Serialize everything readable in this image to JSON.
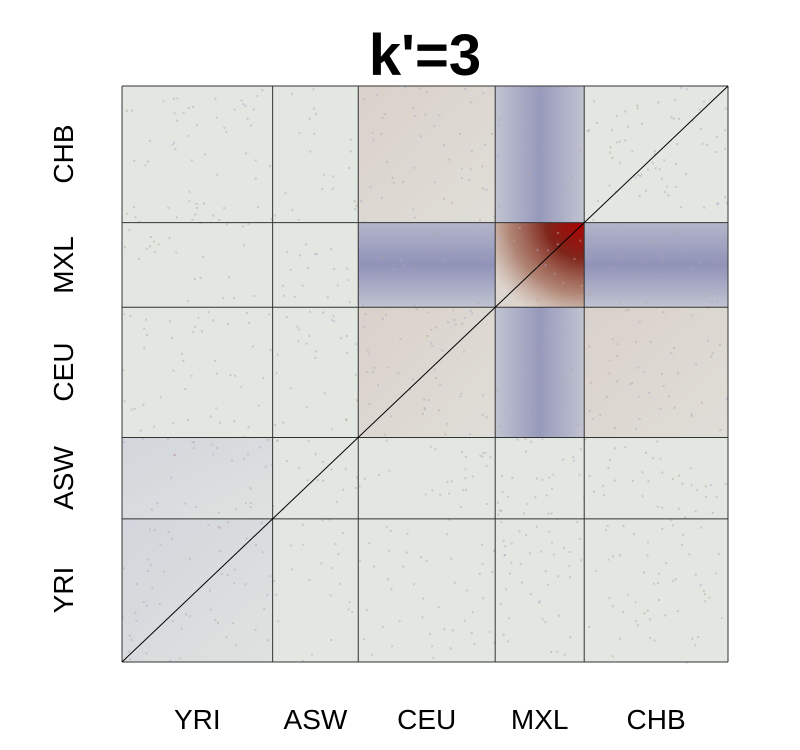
{
  "chart_data": {
    "type": "heatmap",
    "title": "k'=3",
    "x_categories": [
      "YRI",
      "ASW",
      "CEU",
      "MXL",
      "CHB"
    ],
    "y_categories": [
      "YRI",
      "ASW",
      "CEU",
      "MXL",
      "CHB"
    ],
    "group_sizes": [
      88,
      50,
      80,
      52,
      84
    ],
    "diagonal_line": true,
    "colors": {
      "neutral": "#e3e7e1",
      "positive": "#b00000",
      "negative": "#5a5a9e",
      "grid": "#333333"
    },
    "blocks": [
      {
        "x": "MXL",
        "y": "MXL",
        "pattern": "strong-positive"
      },
      {
        "x": "CEU",
        "y": "MXL",
        "pattern": "negative"
      },
      {
        "x": "CHB",
        "y": "MXL",
        "pattern": "negative"
      },
      {
        "x": "MXL",
        "y": "CEU",
        "pattern": "negative"
      },
      {
        "x": "MXL",
        "y": "CHB",
        "pattern": "negative"
      },
      {
        "x": "CEU",
        "y": "CHB",
        "pattern": "weak-positive"
      },
      {
        "x": "CEU",
        "y": "CEU",
        "pattern": "weak-positive"
      },
      {
        "x": "CHB",
        "y": "CEU",
        "pattern": "weak-positive"
      },
      {
        "x": "YRI",
        "y": "ASW",
        "pattern": "weak-negative"
      },
      {
        "x": "YRI",
        "y": "YRI",
        "pattern": "weak-negative"
      }
    ]
  }
}
